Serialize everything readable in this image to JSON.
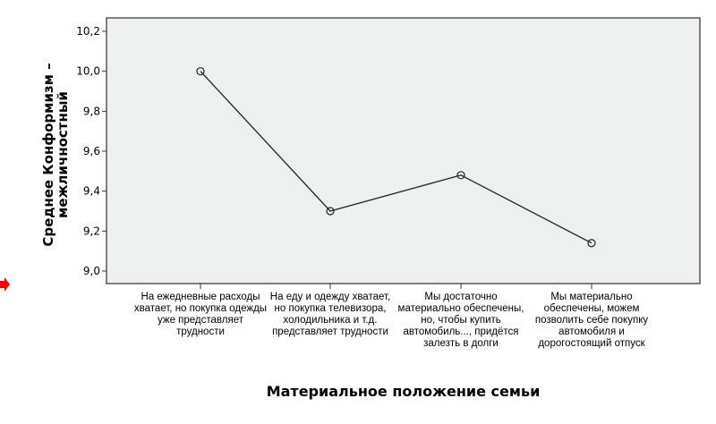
{
  "chart_data": {
    "type": "line",
    "title": "",
    "xlabel": "Материальное положение семьи",
    "ylabel": "Среднее Конформизм – межличностный",
    "categories": [
      "На ежедневные расходы хватает, но покупка одежды уже представляет трудности",
      "На еду и одежду хватает, но покупка телевизора, холодильника и т.д. представляет трудности",
      "Мы достаточно материально обеспечены, но, чтобы купить автомобиль..., придётся залезть в долги",
      "Мы материально обеспечены, можем позволить себе покупку автомобиля и дорогостоящий отпуск"
    ],
    "values": [
      10.0,
      9.3,
      9.48,
      9.14
    ],
    "ylim": [
      9.0,
      10.2
    ],
    "yticks": [
      "9,0",
      "9,2",
      "9,4",
      "9,6",
      "9,8",
      "10,0",
      "10,2"
    ],
    "grid": false,
    "colors": {
      "plot_background": "#eef0ef",
      "line": "#222222",
      "marker_arrow": "#ff0000"
    }
  }
}
